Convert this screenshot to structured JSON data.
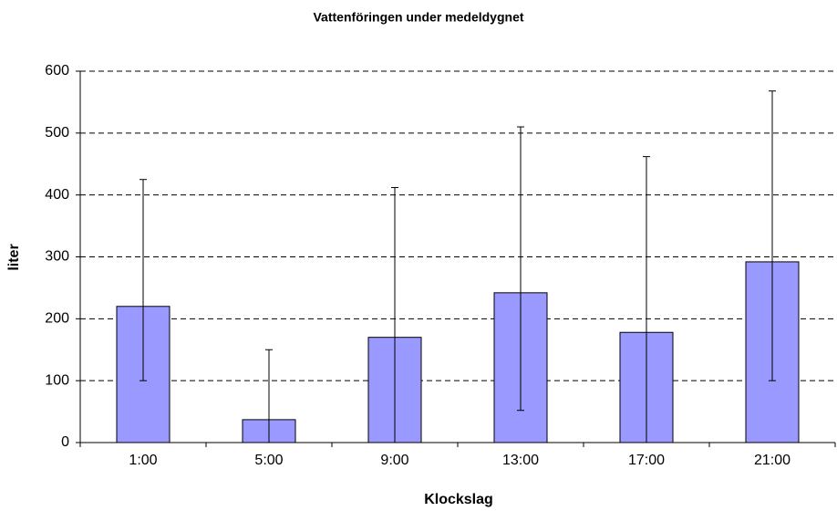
{
  "chart_data": {
    "type": "bar",
    "title": "Vattenföringen under medeldygnet",
    "x_label": "Klockslag",
    "y_label": "liter",
    "categories": [
      "1:00",
      "5:00",
      "9:00",
      "13:00",
      "17:00",
      "21:00"
    ],
    "values": [
      220,
      37,
      170,
      242,
      178,
      292
    ],
    "error_minus": [
      120,
      37,
      170,
      190,
      178,
      192
    ],
    "error_plus": [
      205,
      113,
      242,
      268,
      284,
      276
    ],
    "color": "#9999ff",
    "ylim": [
      0,
      600
    ],
    "yticks": [
      0,
      100,
      200,
      300,
      400,
      500,
      600
    ],
    "grid": true
  }
}
